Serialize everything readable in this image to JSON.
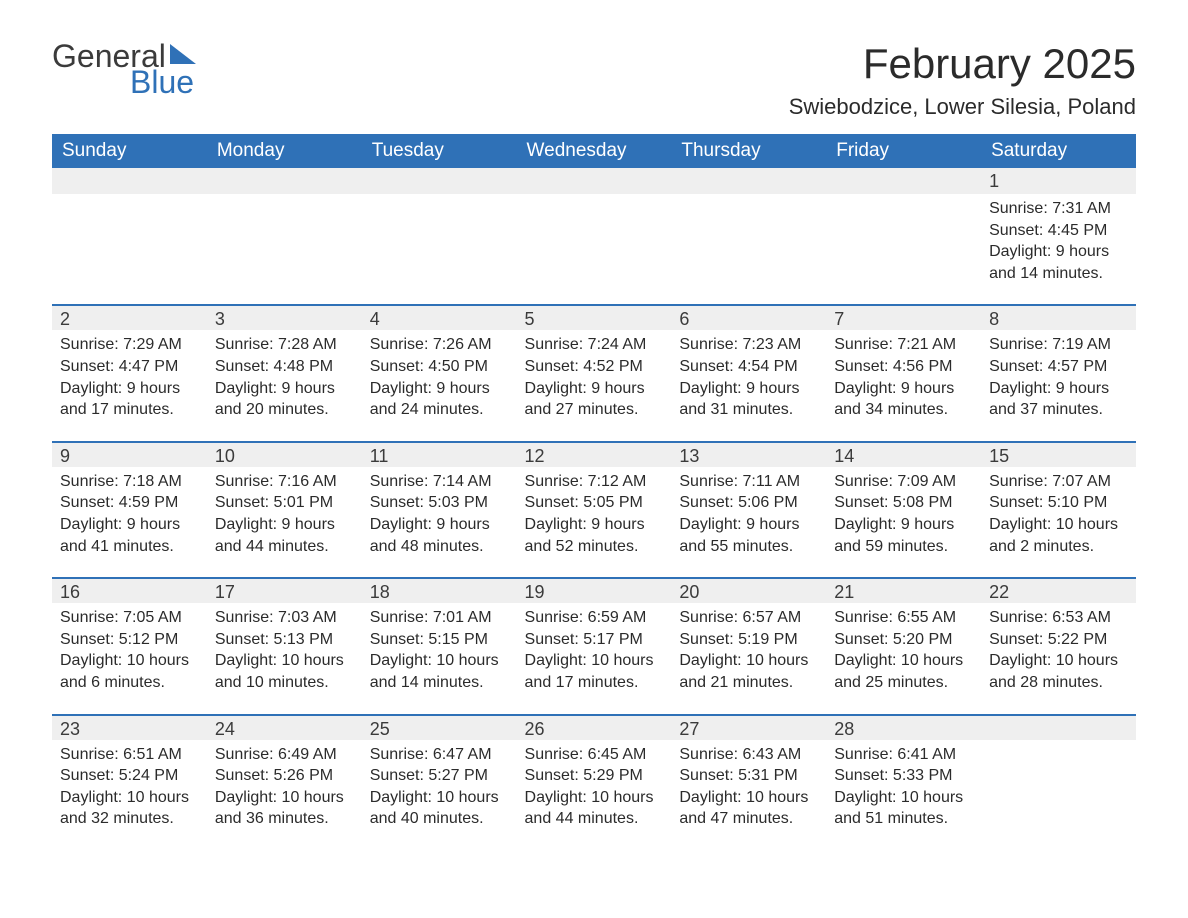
{
  "logo": {
    "text1": "General",
    "text2": "Blue",
    "text1_color": "#3b3b3b",
    "text2_color": "#2f71b7"
  },
  "header": {
    "month_title": "February 2025",
    "location": "Swiebodzice, Lower Silesia, Poland"
  },
  "calendar": {
    "header_bg": "#2f71b7",
    "header_fg": "#ffffff",
    "daybar_bg": "#efefef",
    "divider_color": "#2f71b7",
    "text_color": "#2b2b2b",
    "font_family": "Segoe UI",
    "title_fontsize": 42,
    "location_fontsize": 22,
    "header_fontsize": 19,
    "daynum_fontsize": 18,
    "body_fontsize": 16,
    "columns": [
      "Sunday",
      "Monday",
      "Tuesday",
      "Wednesday",
      "Thursday",
      "Friday",
      "Saturday"
    ],
    "weeks": [
      [
        null,
        null,
        null,
        null,
        null,
        null,
        {
          "day": "1",
          "sunrise": "Sunrise: 7:31 AM",
          "sunset": "Sunset: 4:45 PM",
          "daylight": "Daylight: 9 hours and 14 minutes."
        }
      ],
      [
        {
          "day": "2",
          "sunrise": "Sunrise: 7:29 AM",
          "sunset": "Sunset: 4:47 PM",
          "daylight": "Daylight: 9 hours and 17 minutes."
        },
        {
          "day": "3",
          "sunrise": "Sunrise: 7:28 AM",
          "sunset": "Sunset: 4:48 PM",
          "daylight": "Daylight: 9 hours and 20 minutes."
        },
        {
          "day": "4",
          "sunrise": "Sunrise: 7:26 AM",
          "sunset": "Sunset: 4:50 PM",
          "daylight": "Daylight: 9 hours and 24 minutes."
        },
        {
          "day": "5",
          "sunrise": "Sunrise: 7:24 AM",
          "sunset": "Sunset: 4:52 PM",
          "daylight": "Daylight: 9 hours and 27 minutes."
        },
        {
          "day": "6",
          "sunrise": "Sunrise: 7:23 AM",
          "sunset": "Sunset: 4:54 PM",
          "daylight": "Daylight: 9 hours and 31 minutes."
        },
        {
          "day": "7",
          "sunrise": "Sunrise: 7:21 AM",
          "sunset": "Sunset: 4:56 PM",
          "daylight": "Daylight: 9 hours and 34 minutes."
        },
        {
          "day": "8",
          "sunrise": "Sunrise: 7:19 AM",
          "sunset": "Sunset: 4:57 PM",
          "daylight": "Daylight: 9 hours and 37 minutes."
        }
      ],
      [
        {
          "day": "9",
          "sunrise": "Sunrise: 7:18 AM",
          "sunset": "Sunset: 4:59 PM",
          "daylight": "Daylight: 9 hours and 41 minutes."
        },
        {
          "day": "10",
          "sunrise": "Sunrise: 7:16 AM",
          "sunset": "Sunset: 5:01 PM",
          "daylight": "Daylight: 9 hours and 44 minutes."
        },
        {
          "day": "11",
          "sunrise": "Sunrise: 7:14 AM",
          "sunset": "Sunset: 5:03 PM",
          "daylight": "Daylight: 9 hours and 48 minutes."
        },
        {
          "day": "12",
          "sunrise": "Sunrise: 7:12 AM",
          "sunset": "Sunset: 5:05 PM",
          "daylight": "Daylight: 9 hours and 52 minutes."
        },
        {
          "day": "13",
          "sunrise": "Sunrise: 7:11 AM",
          "sunset": "Sunset: 5:06 PM",
          "daylight": "Daylight: 9 hours and 55 minutes."
        },
        {
          "day": "14",
          "sunrise": "Sunrise: 7:09 AM",
          "sunset": "Sunset: 5:08 PM",
          "daylight": "Daylight: 9 hours and 59 minutes."
        },
        {
          "day": "15",
          "sunrise": "Sunrise: 7:07 AM",
          "sunset": "Sunset: 5:10 PM",
          "daylight": "Daylight: 10 hours and 2 minutes."
        }
      ],
      [
        {
          "day": "16",
          "sunrise": "Sunrise: 7:05 AM",
          "sunset": "Sunset: 5:12 PM",
          "daylight": "Daylight: 10 hours and 6 minutes."
        },
        {
          "day": "17",
          "sunrise": "Sunrise: 7:03 AM",
          "sunset": "Sunset: 5:13 PM",
          "daylight": "Daylight: 10 hours and 10 minutes."
        },
        {
          "day": "18",
          "sunrise": "Sunrise: 7:01 AM",
          "sunset": "Sunset: 5:15 PM",
          "daylight": "Daylight: 10 hours and 14 minutes."
        },
        {
          "day": "19",
          "sunrise": "Sunrise: 6:59 AM",
          "sunset": "Sunset: 5:17 PM",
          "daylight": "Daylight: 10 hours and 17 minutes."
        },
        {
          "day": "20",
          "sunrise": "Sunrise: 6:57 AM",
          "sunset": "Sunset: 5:19 PM",
          "daylight": "Daylight: 10 hours and 21 minutes."
        },
        {
          "day": "21",
          "sunrise": "Sunrise: 6:55 AM",
          "sunset": "Sunset: 5:20 PM",
          "daylight": "Daylight: 10 hours and 25 minutes."
        },
        {
          "day": "22",
          "sunrise": "Sunrise: 6:53 AM",
          "sunset": "Sunset: 5:22 PM",
          "daylight": "Daylight: 10 hours and 28 minutes."
        }
      ],
      [
        {
          "day": "23",
          "sunrise": "Sunrise: 6:51 AM",
          "sunset": "Sunset: 5:24 PM",
          "daylight": "Daylight: 10 hours and 32 minutes."
        },
        {
          "day": "24",
          "sunrise": "Sunrise: 6:49 AM",
          "sunset": "Sunset: 5:26 PM",
          "daylight": "Daylight: 10 hours and 36 minutes."
        },
        {
          "day": "25",
          "sunrise": "Sunrise: 6:47 AM",
          "sunset": "Sunset: 5:27 PM",
          "daylight": "Daylight: 10 hours and 40 minutes."
        },
        {
          "day": "26",
          "sunrise": "Sunrise: 6:45 AM",
          "sunset": "Sunset: 5:29 PM",
          "daylight": "Daylight: 10 hours and 44 minutes."
        },
        {
          "day": "27",
          "sunrise": "Sunrise: 6:43 AM",
          "sunset": "Sunset: 5:31 PM",
          "daylight": "Daylight: 10 hours and 47 minutes."
        },
        {
          "day": "28",
          "sunrise": "Sunrise: 6:41 AM",
          "sunset": "Sunset: 5:33 PM",
          "daylight": "Daylight: 10 hours and 51 minutes."
        },
        null
      ]
    ]
  }
}
